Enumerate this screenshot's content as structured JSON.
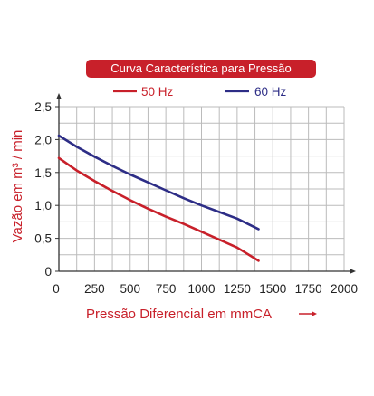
{
  "chart_data": {
    "type": "line",
    "title": "Curva Característica para Pressão",
    "xlabel": "Pressão Diferencial em mmCA",
    "ylabel": "Vazão em m³ / min",
    "xlim": [
      0,
      2000
    ],
    "ylim": [
      0,
      2.5
    ],
    "x_ticks": [
      "0",
      "250",
      "500",
      "750",
      "1000",
      "1250",
      "1500",
      "1750",
      "2000"
    ],
    "y_ticks": [
      "0",
      "0,5",
      "1,0",
      "1,5",
      "2,0",
      "2,5"
    ],
    "grid": true,
    "legend_position": "top",
    "series": [
      {
        "name": "50 Hz",
        "color": "#c8202a",
        "x": [
          0,
          125,
          250,
          375,
          500,
          625,
          750,
          875,
          1000,
          1125,
          1250,
          1400
        ],
        "y": [
          1.72,
          1.53,
          1.37,
          1.22,
          1.08,
          0.95,
          0.83,
          0.72,
          0.6,
          0.48,
          0.36,
          0.16
        ]
      },
      {
        "name": "60 Hz",
        "color": "#2d2d86",
        "x": [
          0,
          125,
          250,
          375,
          500,
          625,
          750,
          875,
          1000,
          1125,
          1250,
          1400
        ],
        "y": [
          2.06,
          1.89,
          1.74,
          1.6,
          1.47,
          1.35,
          1.23,
          1.11,
          1.0,
          0.9,
          0.8,
          0.64
        ]
      }
    ],
    "axis_color": "#c8202a",
    "grid_color": "#bbbbbb"
  }
}
